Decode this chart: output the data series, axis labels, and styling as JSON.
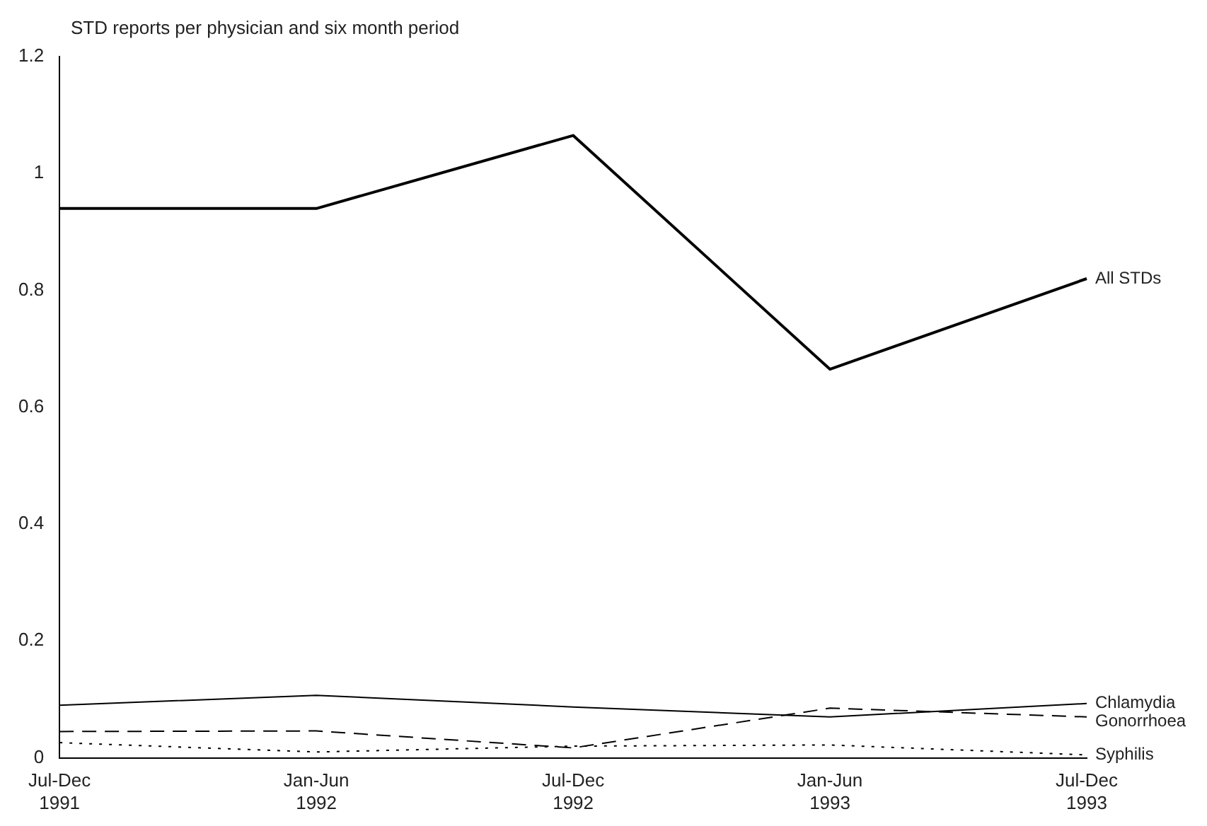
{
  "chart_data": {
    "type": "line",
    "title": "STD reports per physician and six month period",
    "categories": [
      "Jul-Dec 1991",
      "Jan-Jun 1992",
      "Jul-Dec 1992",
      "Jan-Jun 1993",
      "Jul-Dec 1993"
    ],
    "series": [
      {
        "name": "All STDs",
        "color": "#000000",
        "line_style": "solid",
        "values": [
          0.94,
          0.94,
          1.065,
          0.665,
          0.82
        ]
      },
      {
        "name": "Chlamydia",
        "color": "#000000",
        "line_style": "solid",
        "values": [
          0.09,
          0.107,
          0.087,
          0.07,
          0.093
        ]
      },
      {
        "name": "Gonorrhoea",
        "color": "#000000",
        "line_style": "dashed",
        "values": [
          0.045,
          0.046,
          0.017,
          0.085,
          0.07
        ]
      },
      {
        "name": "Syphilis",
        "color": "#000000",
        "line_style": "dotted",
        "values": [
          0.026,
          0.01,
          0.02,
          0.022,
          0.005
        ]
      }
    ],
    "ylim": [
      0,
      1.2
    ],
    "yticks": [
      0,
      0.2,
      0.4,
      0.6,
      0.8,
      1,
      1.2
    ],
    "grid": false,
    "legend": false,
    "marker": "none"
  }
}
